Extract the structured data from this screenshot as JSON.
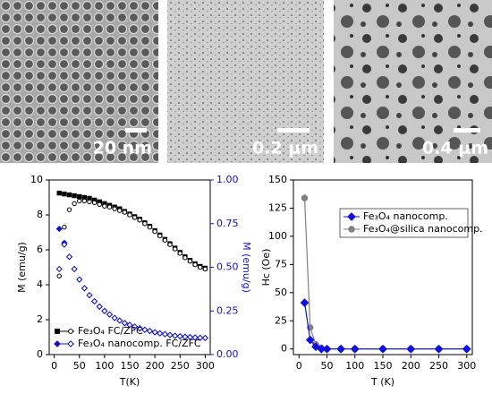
{
  "images": [
    {
      "scale_label": "20 nm"
    },
    {
      "scale_label": "0.2 μm"
    },
    {
      "scale_label": "0.4 μm"
    }
  ],
  "chart_data": [
    {
      "type": "scatter",
      "xlabel": "T(K)",
      "ylabel": "M (emu/g)",
      "y2label": "M (emu/g)",
      "y2_color": "#1010d0",
      "xlim": [
        -10,
        310
      ],
      "xticks": [
        0,
        50,
        100,
        150,
        200,
        250,
        300
      ],
      "ylim": [
        0,
        10
      ],
      "yticks": [
        0,
        2,
        4,
        6,
        8,
        10
      ],
      "y2lim": [
        0,
        1
      ],
      "y2ticks": [
        {
          "value": 0,
          "label": "0.00"
        },
        {
          "value": 0.25,
          "label": "0.25"
        },
        {
          "value": 0.5,
          "label": "0.50"
        },
        {
          "value": 0.75,
          "label": "0.75"
        },
        {
          "value": 1,
          "label": "1.00"
        }
      ],
      "legend": [
        "Fe₃O₄ FC/ZFC",
        "Fe₃O₄ nanocomp. FC/ZFC"
      ],
      "legend_position": "lower left",
      "x": [
        10,
        20,
        30,
        40,
        50,
        60,
        70,
        80,
        90,
        100,
        110,
        120,
        130,
        140,
        150,
        160,
        170,
        180,
        190,
        200,
        210,
        220,
        230,
        240,
        250,
        260,
        270,
        280,
        290,
        300
      ],
      "series": [
        {
          "color": "#000000",
          "marker": "square",
          "filled": true,
          "values": [
            9.25,
            9.2,
            9.15,
            9.1,
            9.05,
            9.0,
            8.95,
            8.85,
            8.75,
            8.65,
            8.55,
            8.45,
            8.35,
            8.2,
            8.05,
            7.9,
            7.75,
            7.55,
            7.35,
            7.1,
            6.85,
            6.6,
            6.35,
            6.1,
            5.85,
            5.6,
            5.4,
            5.2,
            5.05,
            4.95
          ]
        },
        {
          "color": "#000000",
          "marker": "circle",
          "filled": false,
          "values": [
            4.5,
            7.3,
            8.3,
            8.65,
            8.8,
            8.8,
            8.75,
            8.7,
            8.6,
            8.5,
            8.45,
            8.35,
            8.25,
            8.15,
            8.0,
            7.85,
            7.7,
            7.5,
            7.3,
            7.05,
            6.8,
            6.55,
            6.3,
            6.05,
            5.8,
            5.55,
            5.35,
            5.15,
            5.0,
            4.9
          ]
        },
        {
          "color": "#1010d0",
          "marker": "diamond",
          "filled": true,
          "axis": "y2",
          "values": [
            0.72,
            0.64,
            0.56,
            0.49,
            0.43,
            0.38,
            0.34,
            0.305,
            0.275,
            0.25,
            0.23,
            0.21,
            0.195,
            0.18,
            0.17,
            0.16,
            0.15,
            0.142,
            0.135,
            0.128,
            0.122,
            0.117,
            0.112,
            0.108,
            0.105,
            0.102,
            0.1,
            0.098,
            0.096,
            0.095
          ]
        },
        {
          "color": "#1010d0",
          "marker": "diamond",
          "filled": false,
          "axis": "y2",
          "values": [
            0.49,
            0.63,
            0.56,
            0.49,
            0.43,
            0.38,
            0.34,
            0.305,
            0.275,
            0.25,
            0.23,
            0.21,
            0.195,
            0.18,
            0.17,
            0.16,
            0.15,
            0.142,
            0.135,
            0.128,
            0.122,
            0.117,
            0.112,
            0.108,
            0.105,
            0.102,
            0.1,
            0.098,
            0.096,
            0.095
          ]
        }
      ]
    },
    {
      "type": "line",
      "xlabel": "T (K)",
      "ylabel": "Hc (Oe)",
      "legend_position": "upper right",
      "xlim": [
        -10,
        310
      ],
      "xticks": [
        0,
        50,
        100,
        150,
        200,
        250,
        300
      ],
      "ylim": [
        -5,
        150
      ],
      "yticks": [
        0,
        25,
        50,
        75,
        100,
        125,
        150
      ],
      "x": [
        10,
        20,
        30,
        40,
        50,
        75,
        100,
        150,
        200,
        250,
        300
      ],
      "series": [
        {
          "name": "Fe₃O₄@silica nanocomp.",
          "color": "#808080",
          "marker": "circle",
          "filled": true,
          "values": [
            134,
            19,
            4,
            1,
            0,
            0,
            0,
            0,
            0,
            0,
            0
          ]
        },
        {
          "name": "Fe₃O₄ nanocomp.",
          "color": "#1010e0",
          "marker": "diamond",
          "filled": true,
          "values": [
            41,
            8,
            2,
            0,
            0,
            0,
            0,
            0,
            0,
            0,
            0
          ]
        }
      ]
    }
  ]
}
